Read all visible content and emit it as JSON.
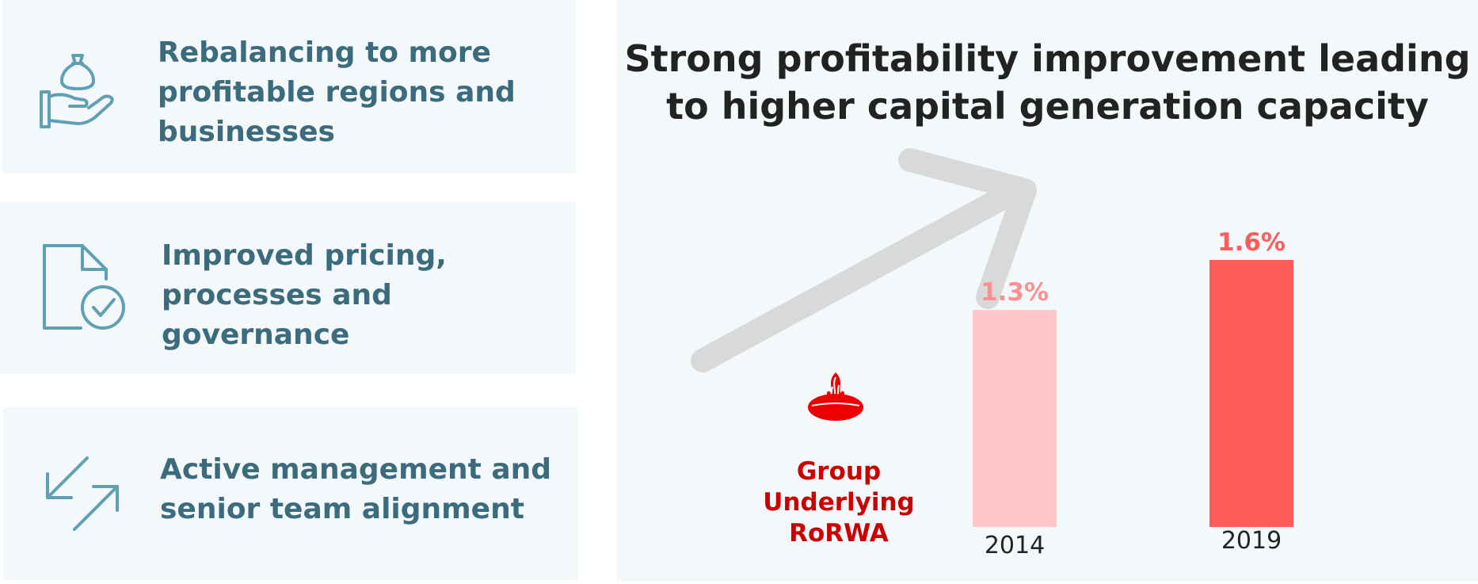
{
  "cards": [
    {
      "text": "Rebalancing to more\nprofitable regions and\nbusinesses",
      "icon": "money-bag-in-hand-icon"
    },
    {
      "text": "Improved pricing,\nprocesses and\ngovernance",
      "icon": "document-check-icon"
    },
    {
      "text": "Active management and\nsenior team alignment",
      "icon": "diagonal-arrows-icon"
    }
  ],
  "colors": {
    "card_bg": "#f3f9fa",
    "card_text": "#3b6b7c",
    "bar_2014": "#ffc7c7",
    "bar_2019": "#ff5c5c",
    "label_2014": "#ff8f8f",
    "label_2019": "#ff5c5c",
    "brand_red": "#ec0000",
    "arrow": "#d9d9d9"
  },
  "chart_data": {
    "type": "bar",
    "title": "Strong profitability improvement leading\nto higher capital generation capacity",
    "categories": [
      "2014",
      "2019"
    ],
    "values": [
      1.3,
      1.6
    ],
    "data_labels": [
      "1.3%",
      "1.6%"
    ],
    "ylabel": "Group\nUnderlying\nRoRWA",
    "ylim": [
      0,
      1.6
    ],
    "grid": false,
    "trend_arrow": "up-right",
    "logo": "santander-flame-logo"
  }
}
